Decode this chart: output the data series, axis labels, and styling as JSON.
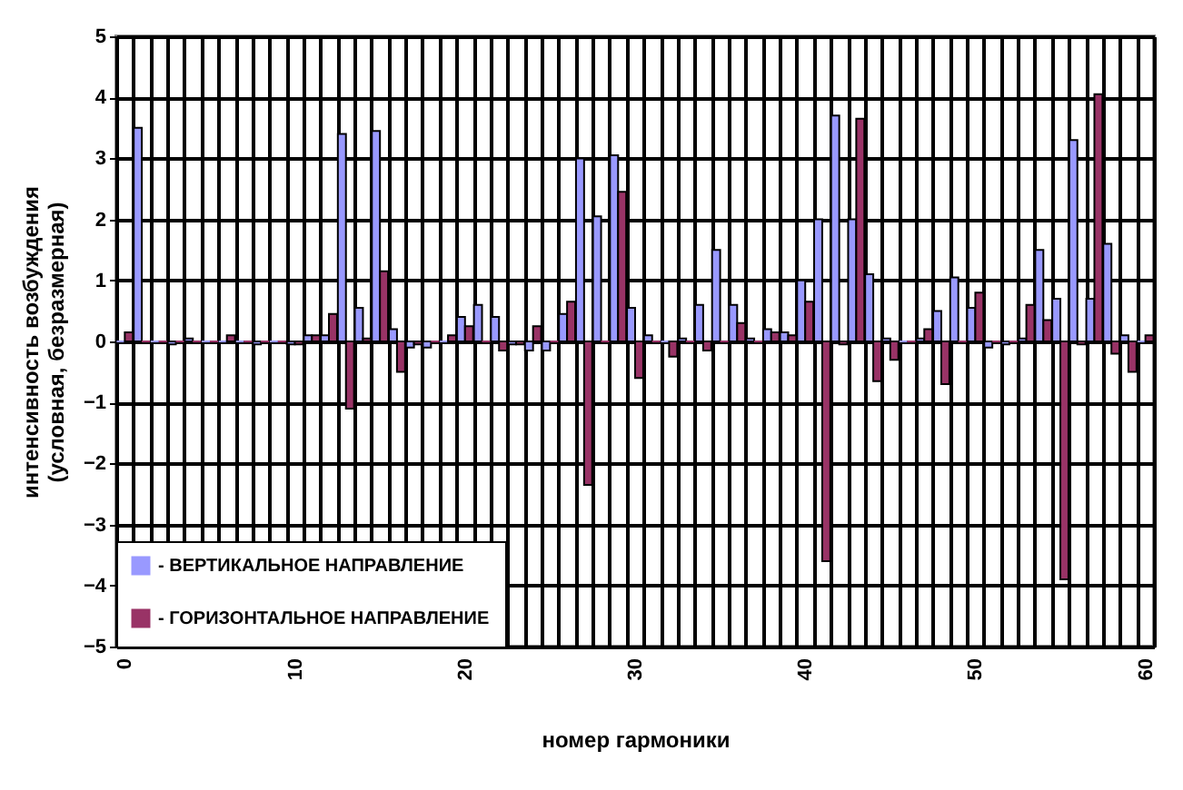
{
  "chart_data": {
    "type": "bar",
    "xlabel": "номер гармоники",
    "ylabel": "интенсивность  возбуждения\n(условная, безразмерная)",
    "categories": [
      "0",
      null,
      null,
      null,
      null,
      null,
      null,
      null,
      null,
      null,
      "10",
      null,
      null,
      null,
      null,
      null,
      null,
      null,
      null,
      null,
      "20",
      null,
      null,
      null,
      null,
      null,
      null,
      null,
      null,
      null,
      "30",
      null,
      null,
      null,
      null,
      null,
      null,
      null,
      null,
      null,
      "40",
      null,
      null,
      null,
      null,
      null,
      null,
      null,
      null,
      null,
      "50",
      null,
      null,
      null,
      null,
      null,
      null,
      null,
      null,
      null,
      "60"
    ],
    "series": [
      {
        "name": "- ВЕРТИКАЛЬНОЕ НАПРАВЛЕНИЕ",
        "color": "#9999ff",
        "values": [
          0,
          3.5,
          0,
          -0.05,
          0.05,
          0,
          0,
          0,
          -0.05,
          0,
          -0.05,
          0.1,
          0.1,
          3.4,
          0.55,
          3.45,
          0.2,
          -0.1,
          -0.1,
          0,
          0.4,
          0.6,
          0.4,
          -0.05,
          -0.15,
          -0.15,
          0.45,
          3.0,
          2.05,
          3.05,
          0.55,
          0.1,
          0,
          0.05,
          0.6,
          1.5,
          0.6,
          0.05,
          0.2,
          0.15,
          1.0,
          2.0,
          3.7,
          2.0,
          1.1,
          0.05,
          0,
          0.05,
          0.5,
          1.05,
          0.55,
          -0.1,
          -0.05,
          0.05,
          1.5,
          0.7,
          3.3,
          0.7,
          1.6,
          0.1,
          0
        ]
      },
      {
        "name": "- ГОРИЗОНТАЛЬНОЕ НАПРАВЛЕНИЕ",
        "color": "#993366",
        "values": [
          0.15,
          0,
          0,
          0,
          0,
          0,
          0.1,
          0,
          0,
          0,
          -0.05,
          0.1,
          0.45,
          -1.1,
          0.05,
          1.15,
          -0.5,
          -0.05,
          0,
          0.1,
          0.25,
          0,
          -0.15,
          -0.05,
          0.25,
          0,
          0.65,
          -2.35,
          0,
          2.45,
          -0.6,
          0,
          -0.25,
          0,
          -0.15,
          0,
          0.3,
          0,
          0.15,
          0.1,
          0.65,
          -3.6,
          -0.05,
          3.65,
          -0.65,
          -0.3,
          0,
          0.2,
          -0.7,
          0,
          0.8,
          0,
          0,
          0.6,
          0.35,
          -3.9,
          -0.05,
          4.05,
          -0.2,
          -0.5,
          0.1
        ]
      }
    ],
    "ylim": [
      -5,
      5
    ],
    "yticks": [
      -5,
      -4,
      -3,
      -2,
      -1,
      0,
      1,
      2,
      3,
      4,
      5
    ],
    "grid": true,
    "legend": "bottom left"
  }
}
